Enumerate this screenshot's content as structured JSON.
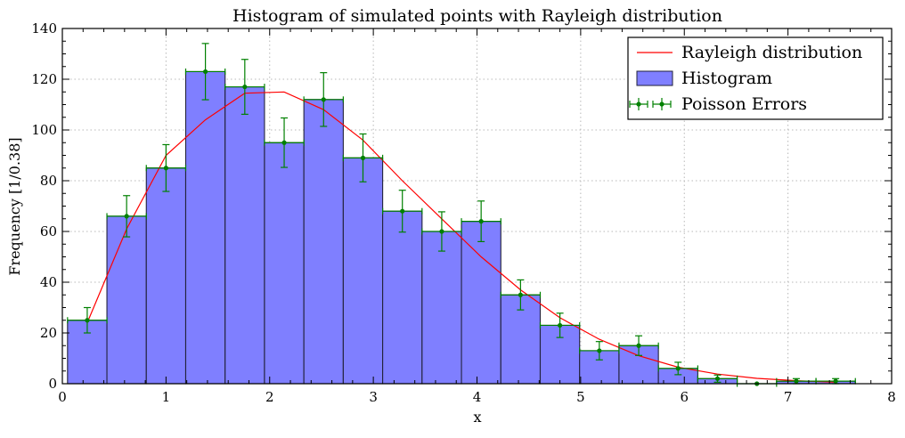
{
  "chart_data": {
    "type": "bar",
    "title": "Histogram of simulated points with Rayleigh distribution",
    "xlabel": "x",
    "ylabel": "Frequency [1/0.38]",
    "xlim": [
      0,
      8
    ],
    "ylim": [
      0,
      140
    ],
    "xticks": [
      0,
      1,
      2,
      3,
      4,
      5,
      6,
      7,
      8
    ],
    "yticks": [
      0,
      20,
      40,
      60,
      80,
      100,
      120,
      140
    ],
    "grid": true,
    "legend_position": "top-right",
    "bin_width": 0.38,
    "series": [
      {
        "name": "Histogram",
        "kind": "histogram",
        "color": "#7f7fff",
        "bin_edges": [
          0.05,
          0.43,
          0.81,
          1.19,
          1.57,
          1.95,
          2.33,
          2.71,
          3.09,
          3.47,
          3.85,
          4.23,
          4.61,
          4.99,
          5.37,
          5.75,
          6.13,
          6.51,
          6.89,
          7.27,
          7.65
        ],
        "values": [
          25,
          66,
          85,
          123,
          117,
          95,
          112,
          89,
          68,
          60,
          64,
          35,
          23,
          13,
          15,
          6,
          2,
          0,
          1,
          1
        ]
      },
      {
        "name": "Rayleigh distribution",
        "kind": "line",
        "color": "#ff0000",
        "x": [
          0.24,
          0.62,
          1.0,
          1.38,
          1.76,
          2.14,
          2.52,
          2.9,
          3.28,
          3.66,
          4.04,
          4.42,
          4.8,
          5.18,
          5.56,
          5.94,
          6.32,
          6.7,
          7.08,
          7.46
        ],
        "y": [
          24,
          61,
          90,
          104,
          114.5,
          115,
          108,
          96,
          80,
          65,
          50,
          37,
          26,
          17.5,
          11,
          6.5,
          3.8,
          2.1,
          1.2,
          0.6
        ]
      },
      {
        "name": "Poisson Errors",
        "kind": "errorbar",
        "color": "#008000",
        "x": [
          0.24,
          0.62,
          1.0,
          1.38,
          1.76,
          2.14,
          2.52,
          2.9,
          3.28,
          3.66,
          4.04,
          4.42,
          4.8,
          5.18,
          5.56,
          5.94,
          6.32,
          6.7,
          7.08,
          7.46
        ],
        "y": [
          25,
          66,
          85,
          123,
          117,
          95,
          112,
          89,
          68,
          60,
          64,
          35,
          23,
          13,
          15,
          6,
          2,
          0,
          1,
          1
        ],
        "xerr": 0.19
      }
    ]
  }
}
